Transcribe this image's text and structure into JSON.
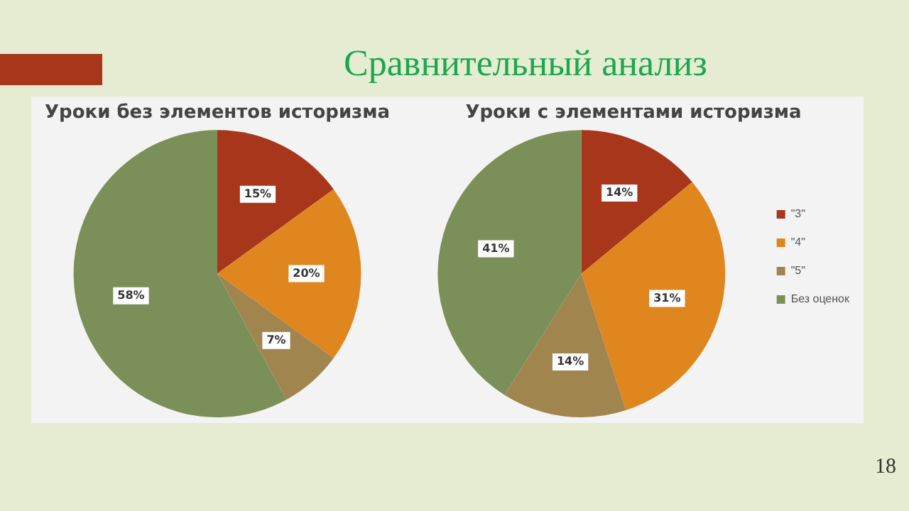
{
  "chart_data": [
    {
      "type": "pie",
      "title": "Уроки без элементов историзма",
      "categories": [
        null,
        null,
        null,
        null
      ],
      "values": [
        15,
        20,
        7,
        58
      ],
      "value_labels": [
        "15%",
        "20%",
        "7%",
        "58%"
      ],
      "colors": [
        "#a8361b",
        "#e0861f",
        "#a0854f",
        "#7b9058"
      ],
      "legend": false,
      "annotations": [
        "Сравнительный анализ"
      ]
    },
    {
      "type": "pie",
      "title": "Уроки с элементами историзма",
      "categories": [
        "\"3\"",
        "\"4\"",
        "\"5\"",
        "Без оценок"
      ],
      "values": [
        14,
        31,
        14,
        41
      ],
      "value_labels": [
        "14%",
        "31%",
        "14%",
        "41%"
      ],
      "colors": [
        "#a8361b",
        "#e0861f",
        "#a0854f",
        "#7b9058"
      ],
      "legend": "right",
      "annotations": [
        "18"
      ]
    }
  ]
}
